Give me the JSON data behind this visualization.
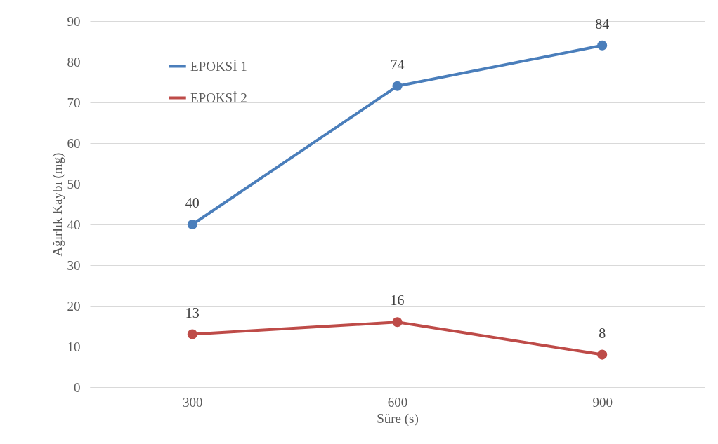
{
  "chart_data": {
    "type": "line",
    "xlabel": "Süre (s)",
    "ylabel": "Ağırlık Kaybı (mg)",
    "categories": [
      "300",
      "600",
      "900"
    ],
    "series": [
      {
        "name": "EPOKSİ 1",
        "color": "#4a7ebb",
        "values": [
          40,
          74,
          84
        ]
      },
      {
        "name": "EPOKSİ 2",
        "color": "#be4b48",
        "values": [
          13,
          16,
          8
        ]
      }
    ],
    "ylim": [
      0,
      90
    ],
    "yticks": [
      0,
      10,
      20,
      30,
      40,
      50,
      60,
      70,
      80,
      90
    ],
    "grid": "y",
    "legend": "top left",
    "marker": "circle",
    "line_style": "solid",
    "data_labels": true
  }
}
